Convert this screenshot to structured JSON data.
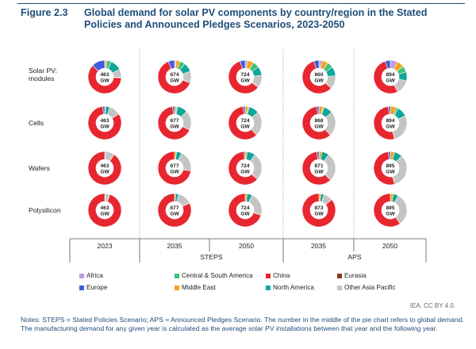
{
  "figure": {
    "label": "Figure 2.3",
    "title": "Global demand for solar PV components by country/region in the Stated Policies and Announced Pledges Scenarios, 2023-2050"
  },
  "chart_data": {
    "type": "pie",
    "variant": "donut-grid",
    "rows": [
      "Solar PV: modules",
      "Cells",
      "Wafers",
      "Polysilicon"
    ],
    "columns": [
      "2023",
      "2035",
      "2050",
      "2035",
      "2050"
    ],
    "scenario_groups": [
      {
        "name": "",
        "columns": [
          0
        ]
      },
      {
        "name": "STEPS",
        "columns": [
          1,
          2
        ]
      },
      {
        "name": "APS",
        "columns": [
          3,
          4
        ]
      }
    ],
    "center_unit": "GW",
    "series": [
      {
        "name": "Africa",
        "color": "#c19be6"
      },
      {
        "name": "Central & South America",
        "color": "#3cc07a"
      },
      {
        "name": "China",
        "color": "#e8262f"
      },
      {
        "name": "Eurasia",
        "color": "#8b3a1e"
      },
      {
        "name": "Europe",
        "color": "#3d5ce0"
      },
      {
        "name": "Middle East",
        "color": "#f4a31b"
      },
      {
        "name": "North America",
        "color": "#10a79a"
      },
      {
        "name": "Other Asia Pacific",
        "color": "#c4c4c4"
      }
    ],
    "cells": [
      [
        {
          "total": 463,
          "shares": [
            0.005,
            0.04,
            0.61,
            0.005,
            0.13,
            0.02,
            0.11,
            0.08
          ]
        },
        {
          "total": 674,
          "shares": [
            0.015,
            0.05,
            0.63,
            0.01,
            0.06,
            0.04,
            0.09,
            0.105
          ]
        },
        {
          "total": 724,
          "shares": [
            0.025,
            0.06,
            0.59,
            0.01,
            0.05,
            0.06,
            0.09,
            0.115
          ]
        },
        {
          "total": 860,
          "shares": [
            0.03,
            0.06,
            0.58,
            0.01,
            0.05,
            0.06,
            0.09,
            0.12
          ]
        },
        {
          "total": 894,
          "shares": [
            0.07,
            0.06,
            0.52,
            0.01,
            0.05,
            0.07,
            0.09,
            0.13
          ]
        }
      ],
      [
        {
          "total": 463,
          "shares": [
            0.0,
            0.0,
            0.82,
            0.0,
            0.02,
            0.01,
            0.04,
            0.11
          ]
        },
        {
          "total": 677,
          "shares": [
            0.0,
            0.01,
            0.66,
            0.0,
            0.02,
            0.02,
            0.1,
            0.19
          ]
        },
        {
          "total": 724,
          "shares": [
            0.0,
            0.01,
            0.6,
            0.0,
            0.02,
            0.03,
            0.1,
            0.24
          ]
        },
        {
          "total": 868,
          "shares": [
            0.0,
            0.01,
            0.6,
            0.0,
            0.02,
            0.04,
            0.09,
            0.24
          ]
        },
        {
          "total": 894,
          "shares": [
            0.0,
            0.02,
            0.52,
            0.0,
            0.02,
            0.06,
            0.1,
            0.28
          ]
        }
      ],
      [
        {
          "total": 463,
          "shares": [
            0.0,
            0.0,
            0.9,
            0.01,
            0.0,
            0.0,
            0.01,
            0.08
          ]
        },
        {
          "total": 677,
          "shares": [
            0.0,
            0.0,
            0.72,
            0.01,
            0.0,
            0.02,
            0.05,
            0.2
          ]
        },
        {
          "total": 724,
          "shares": [
            0.0,
            0.0,
            0.62,
            0.01,
            0.01,
            0.02,
            0.08,
            0.26
          ]
        },
        {
          "total": 871,
          "shares": [
            0.0,
            0.0,
            0.6,
            0.01,
            0.02,
            0.03,
            0.07,
            0.27
          ]
        },
        {
          "total": 895,
          "shares": [
            0.0,
            0.0,
            0.52,
            0.01,
            0.02,
            0.04,
            0.08,
            0.33
          ]
        }
      ],
      [
        {
          "total": 463,
          "shares": [
            0.0,
            0.0,
            0.95,
            0.0,
            0.0,
            0.0,
            0.01,
            0.04
          ]
        },
        {
          "total": 677,
          "shares": [
            0.0,
            0.0,
            0.82,
            0.0,
            0.0,
            0.01,
            0.03,
            0.14
          ]
        },
        {
          "total": 724,
          "shares": [
            0.0,
            0.0,
            0.7,
            0.0,
            0.0,
            0.02,
            0.05,
            0.23
          ]
        },
        {
          "total": 873,
          "shares": [
            0.0,
            0.0,
            0.86,
            0.0,
            0.0,
            0.02,
            0.03,
            0.09
          ]
        },
        {
          "total": 895,
          "shares": [
            0.0,
            0.0,
            0.6,
            0.0,
            0.0,
            0.03,
            0.05,
            0.32
          ]
        }
      ]
    ]
  },
  "credit": "IEA. CC BY 4.0.",
  "notes": "Notes: STEPS = Stated Policies Scenario; APS = Announced Pledges Scenario. The number in the middle of the pie chart refers to global demand. The manufacturing demand for any given year is calculated as the average solar PV installations between that year and the following year."
}
